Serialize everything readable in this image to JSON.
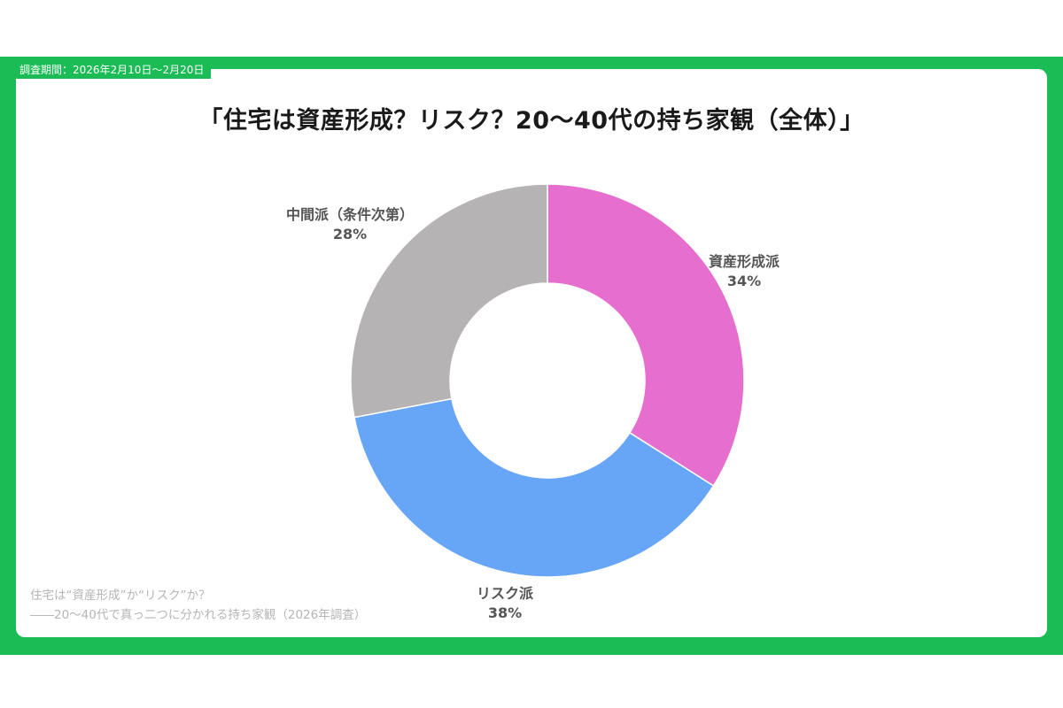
{
  "header": {
    "survey_period": "調査期間：2026年2月10日〜2月20日"
  },
  "chart_data": {
    "type": "pie",
    "title": "「住宅は資産形成？リスク？20〜40代の持ち家観（全体）」",
    "categories": [
      "資産形成派",
      "リスク派",
      "中間派（条件次第）"
    ],
    "values": [
      34,
      38,
      28
    ],
    "value_labels": [
      "34%",
      "38%",
      "28%"
    ],
    "colors": [
      "#e66ecf",
      "#67a6f6",
      "#b5b3b4"
    ],
    "donut": true
  },
  "footer": {
    "line1": "住宅は“資産形成”か“リスク”か？",
    "line2": "――20〜40代で真っ二つに分かれる持ち家観（2026年調査）"
  }
}
